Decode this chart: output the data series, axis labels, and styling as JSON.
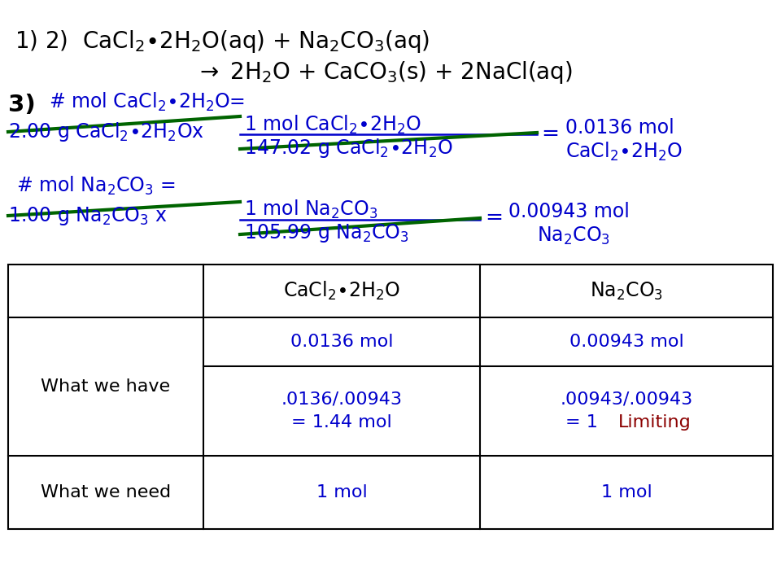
{
  "bg_color": "#ffffff",
  "title_line1": "1) 2)  CaCl$_2$$\\bullet$2H$_2$O(aq) + Na$_2$CO$_3$(aq)",
  "title_line2": "$\\rightarrow$ 2H$_2$O + CaCO$_3$(s) + 2NaCl(aq)",
  "cacl2_label1": "# mol CaCl$_2$$\\bullet$2H$_2$O=",
  "cacl2_line1": "2.00 g CaCl$_2$$\\bullet$2H$_2$Ox",
  "cacl2_numerator": "1 mol CaCl$_2$$\\bullet$2H$_2$O",
  "cacl2_denominator": "147.02 g CaCl$_2$$\\bullet$2H$_2$O",
  "cacl2_result1": "0.0136 mol",
  "cacl2_result2": "CaCl$_2$$\\bullet$2H$_2$O",
  "na2co3_label1": "# mol Na$_2$CO$_3$ =",
  "na2co3_line1": "1.00 g Na$_2$CO$_3$ x",
  "na2co3_numerator": "1 mol Na$_2$CO$_3$",
  "na2co3_denominator": "105.99 g Na$_2$CO$_3$",
  "na2co3_result1": "0.00943 mol",
  "na2co3_result2": "Na$_2$CO$_3$",
  "table_col1": "CaCl$_2$$\\bullet$2H$_2$O",
  "table_col2": "Na$_2$CO$_3$",
  "table_row1_label": "What we have",
  "table_row1_c1": "0.0136 mol",
  "table_row1_c2": "0.00943 mol",
  "table_row2_c1": ".0136/.00943\n= 1.44 mol",
  "table_row2_c2_top": ".00943/.00943",
  "table_row2_c2_bot_blue": "= 1  ",
  "table_row2_c2_bot_red": "Limiting",
  "table_row3_label": "What we need",
  "table_row3_c1": "1 mol",
  "table_row3_c2": "1 mol",
  "blue": "#0000CC",
  "black": "#000000",
  "dark_red": "#8B0000",
  "green": "#006400",
  "font_size_title": 20,
  "font_size_main": 17,
  "font_size_table_header": 17,
  "font_size_table_body": 16
}
